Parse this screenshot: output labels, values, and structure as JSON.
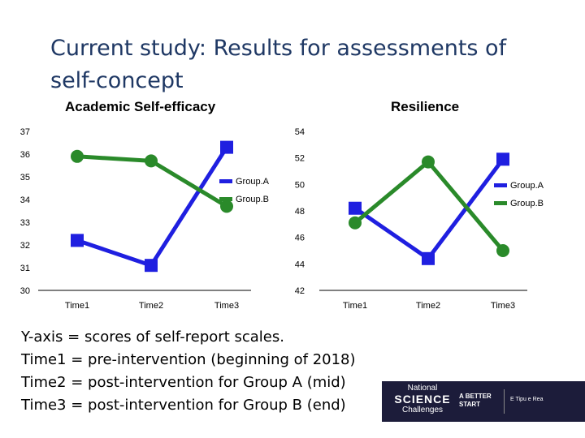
{
  "slide": {
    "title": "Current study: Results for assessments of self-concept"
  },
  "chart_data": [
    {
      "type": "line",
      "title": "Academic Self-efficacy",
      "categories": [
        "Time1",
        "Time2",
        "Time3"
      ],
      "yticks": [
        30,
        31,
        32,
        33,
        34,
        35,
        36,
        37
      ],
      "ylim": [
        30,
        37
      ],
      "series": [
        {
          "name": "Group.A",
          "marker": "square",
          "color": "#1f1fe0",
          "values": [
            32.2,
            31.1,
            36.3
          ]
        },
        {
          "name": "Group.B",
          "marker": "circle",
          "color": "#2a8a2a",
          "values": [
            35.9,
            35.7,
            33.7
          ]
        }
      ],
      "legend": "right-upper"
    },
    {
      "type": "line",
      "title": "Resilience",
      "categories": [
        "Time1",
        "Time2",
        "Time3"
      ],
      "yticks": [
        42,
        44,
        46,
        48,
        50,
        52,
        54
      ],
      "ylim": [
        42,
        54
      ],
      "series": [
        {
          "name": "Group.A",
          "marker": "square",
          "color": "#1f1fe0",
          "values": [
            48.2,
            44.4,
            51.9
          ]
        },
        {
          "name": "Group.B",
          "marker": "circle",
          "color": "#2a8a2a",
          "values": [
            47.1,
            51.7,
            45.0
          ]
        }
      ],
      "legend": "right-upper"
    }
  ],
  "notes": [
    "Y-axis = scores of self-report scales.",
    "Time1 = pre-intervention (beginning of 2018)",
    "Time2 = post-intervention for Group A (mid)",
    "Time3 = post-intervention for Group B (end)"
  ],
  "logos": {
    "nsc_line1": "National",
    "nsc_line2": "SCIENCE",
    "nsc_line3": "Challenges",
    "abs_line1": "A BETTER",
    "abs_line2": "START",
    "tuo": "E Tipu e Rea"
  }
}
